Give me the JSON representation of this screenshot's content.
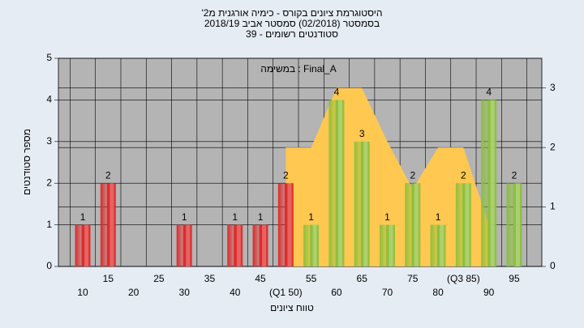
{
  "chart_data": {
    "type": "bar",
    "title": [
      "'היסטוגרמת ציונים בקורס - כימיה אורגנית מ2",
      "בסמסטר  (02/2018)  סמסטר אביב 2018/19",
      "סטודנטים רשומים - 39"
    ],
    "annotation": "במשימה : Final_A",
    "x_label": "טווח ציונים",
    "y_label": "מספר סטודנטים",
    "categories": [
      "10",
      "15",
      "20",
      "25",
      "30",
      "35",
      "40",
      "45",
      "(Q1 50)",
      "55",
      "60",
      "65",
      "70",
      "75",
      "80",
      "(Q3 85)",
      "90",
      "95"
    ],
    "values": [
      1,
      2,
      0,
      0,
      1,
      0,
      1,
      1,
      2,
      1,
      4,
      3,
      1,
      2,
      1,
      2,
      4,
      2
    ],
    "colors": [
      "#e02828",
      "#e02828",
      "#e02828",
      "#e02828",
      "#e02828",
      "#e02828",
      "#e02828",
      "#e02828",
      "#e02828",
      "#8cc03c",
      "#8cc03c",
      "#8cc03c",
      "#8cc03c",
      "#8cc03c",
      "#8cc03c",
      "#8cc03c",
      "#8cc03c",
      "#8cc03c"
    ],
    "area": {
      "color": "#ffc850",
      "axis": "y2",
      "values": [
        null,
        null,
        null,
        null,
        null,
        null,
        null,
        null,
        2,
        2,
        3,
        3,
        2.1,
        1.3,
        2,
        2,
        0.7,
        null
      ]
    },
    "ylim": [
      0,
      5
    ],
    "yticks": [
      0,
      1,
      2,
      3,
      4,
      5
    ],
    "y2lim": [
      0,
      3.5
    ],
    "y2ticks": [
      0,
      1,
      2,
      3
    ],
    "grid": true
  }
}
